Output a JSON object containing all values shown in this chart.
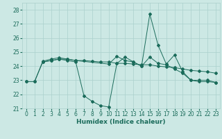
{
  "xlabel": "Humidex (Indice chaleur)",
  "xlim": [
    -0.5,
    23.5
  ],
  "ylim": [
    21,
    28.5
  ],
  "yticks": [
    21,
    22,
    23,
    24,
    25,
    26,
    27,
    28
  ],
  "xticks": [
    0,
    1,
    2,
    3,
    4,
    5,
    6,
    7,
    8,
    9,
    10,
    11,
    12,
    13,
    14,
    15,
    16,
    17,
    18,
    19,
    20,
    21,
    22,
    23
  ],
  "bg_color": "#cce8e4",
  "grid_color": "#aad0cc",
  "line_color": "#1a6b5a",
  "series": [
    {
      "x": [
        0,
        1,
        2,
        3,
        4,
        5,
        6,
        7,
        8,
        9,
        10,
        11,
        12,
        13,
        14,
        15,
        16,
        17,
        18,
        19,
        20,
        21,
        22,
        23
      ],
      "y": [
        22.9,
        22.9,
        24.35,
        24.5,
        24.6,
        24.5,
        24.4,
        24.4,
        24.35,
        24.3,
        24.3,
        24.2,
        24.2,
        24.15,
        24.1,
        24.1,
        24.0,
        23.95,
        23.9,
        23.8,
        23.7,
        23.65,
        23.6,
        23.5
      ]
    },
    {
      "x": [
        0,
        1,
        2,
        3,
        4,
        5,
        6,
        7,
        8,
        9,
        10,
        11,
        12,
        13,
        14,
        15,
        16,
        17,
        18,
        19,
        20,
        21,
        22,
        23
      ],
      "y": [
        22.9,
        22.9,
        24.3,
        24.4,
        24.5,
        24.4,
        24.3,
        21.9,
        21.5,
        21.2,
        21.1,
        24.2,
        24.65,
        24.3,
        24.0,
        24.65,
        24.2,
        24.1,
        23.8,
        23.5,
        23.0,
        22.9,
        22.9,
        22.85
      ]
    },
    {
      "x": [
        2,
        3,
        4,
        5,
        6,
        10,
        11,
        12,
        13,
        14,
        15,
        16,
        17,
        18,
        19,
        20,
        21,
        22,
        23
      ],
      "y": [
        24.3,
        24.4,
        24.5,
        24.5,
        24.4,
        24.15,
        24.7,
        24.4,
        24.3,
        24.0,
        27.7,
        25.5,
        24.15,
        24.8,
        23.6,
        23.0,
        23.0,
        23.0,
        22.85
      ]
    }
  ]
}
